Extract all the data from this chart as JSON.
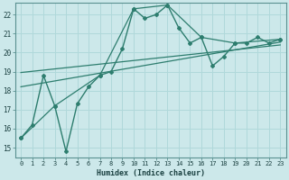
{
  "xlabel": "Humidex (Indice chaleur)",
  "background_color": "#cce8ea",
  "grid_color": "#b0d8da",
  "line_color": "#2d7d6e",
  "xlim": [
    -0.5,
    23.5
  ],
  "ylim": [
    14.5,
    22.6
  ],
  "xticks": [
    0,
    1,
    2,
    3,
    4,
    5,
    6,
    7,
    8,
    9,
    10,
    11,
    12,
    13,
    14,
    15,
    16,
    17,
    18,
    19,
    20,
    21,
    22,
    23
  ],
  "yticks": [
    15,
    16,
    17,
    18,
    19,
    20,
    21,
    22
  ],
  "series": [
    {
      "x": [
        0,
        1,
        2,
        3,
        4,
        5,
        6,
        7,
        8,
        9,
        10,
        11,
        12,
        13,
        14,
        15,
        16,
        17,
        18,
        19,
        20,
        21,
        22,
        23
      ],
      "y": [
        15.5,
        16.2,
        18.8,
        17.2,
        14.8,
        17.3,
        18.2,
        18.8,
        19.0,
        20.2,
        22.3,
        21.8,
        22.0,
        22.5,
        21.3,
        20.5,
        20.8,
        19.3,
        19.8,
        20.5,
        20.5,
        20.8,
        20.5,
        20.7
      ],
      "style": "-",
      "marker": "P",
      "markersize": 2.5,
      "linewidth": 1.0,
      "zorder": 3
    },
    {
      "x": [
        0,
        23
      ],
      "y": [
        18.95,
        20.4
      ],
      "style": "-",
      "marker": null,
      "markersize": 0,
      "linewidth": 0.9,
      "zorder": 2
    },
    {
      "x": [
        0,
        23
      ],
      "y": [
        18.2,
        20.55
      ],
      "style": "-",
      "marker": null,
      "markersize": 0,
      "linewidth": 0.9,
      "zorder": 2
    },
    {
      "x": [
        0,
        3,
        7,
        10,
        13,
        16,
        19,
        23
      ],
      "y": [
        15.5,
        17.2,
        18.8,
        22.3,
        22.5,
        20.8,
        20.5,
        20.7
      ],
      "style": "-",
      "marker": "P",
      "markersize": 2.5,
      "linewidth": 0.9,
      "zorder": 2
    }
  ]
}
